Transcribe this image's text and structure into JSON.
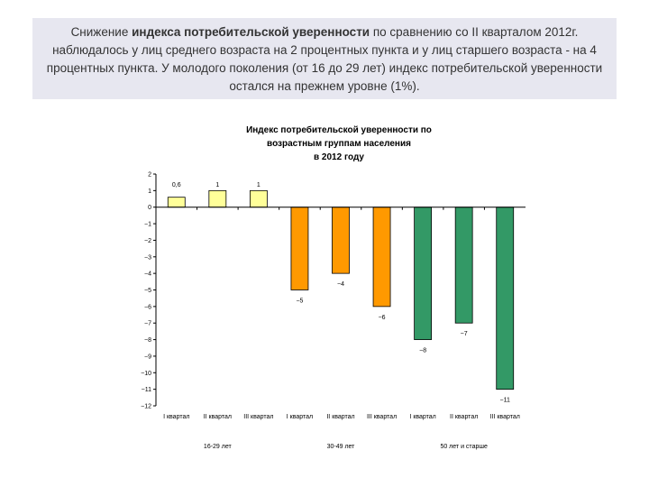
{
  "header": {
    "text_before": "Снижение ",
    "text_bold": "индекса потребительской уверенности",
    "text_after": " по сравнению со II кварталом 2012г. наблюдалось у лиц среднего возраста на 2 процентных пункта и у лиц старшего возраста - на 4 процентных пункта. У молодого поколения (от 16 до 29 лет) индекс потребительской уверенности остался на прежнем уровне (1%)."
  },
  "chart_data": {
    "type": "bar",
    "title_lines": [
      "Индекс потребительской уверенности по",
      "возрастным группам населения",
      "в 2012 году"
    ],
    "ylim": [
      -12,
      2
    ],
    "yticks": [
      2,
      1,
      0,
      -1,
      -2,
      -3,
      -4,
      -5,
      -6,
      -7,
      -8,
      -9,
      -10,
      -11,
      -12
    ],
    "ytick_labels": [
      "2",
      "1",
      "0",
      "−1",
      "−2",
      "−3",
      "−4",
      "−5",
      "−6",
      "−7",
      "−8",
      "−9",
      "−10",
      "−11",
      "−12"
    ],
    "categories": [
      "I квартал",
      "II квартал",
      "III квартал",
      "I квартал",
      "II квартал",
      "III квартал",
      "I квартал",
      "II квартал",
      "III квартал"
    ],
    "values": [
      0.6,
      1,
      1,
      -5,
      -4,
      -6,
      -8,
      -7,
      -11
    ],
    "value_labels": [
      "0,6",
      "1",
      "1",
      "−5",
      "−4",
      "−6",
      "−8",
      "−7",
      "−11"
    ],
    "groups": [
      {
        "label": "16-29 лет",
        "color": "#ffff99"
      },
      {
        "label": "30-49 лет",
        "color": "#ff9900"
      },
      {
        "label": "50 лет и старше",
        "color": "#339966"
      }
    ]
  }
}
